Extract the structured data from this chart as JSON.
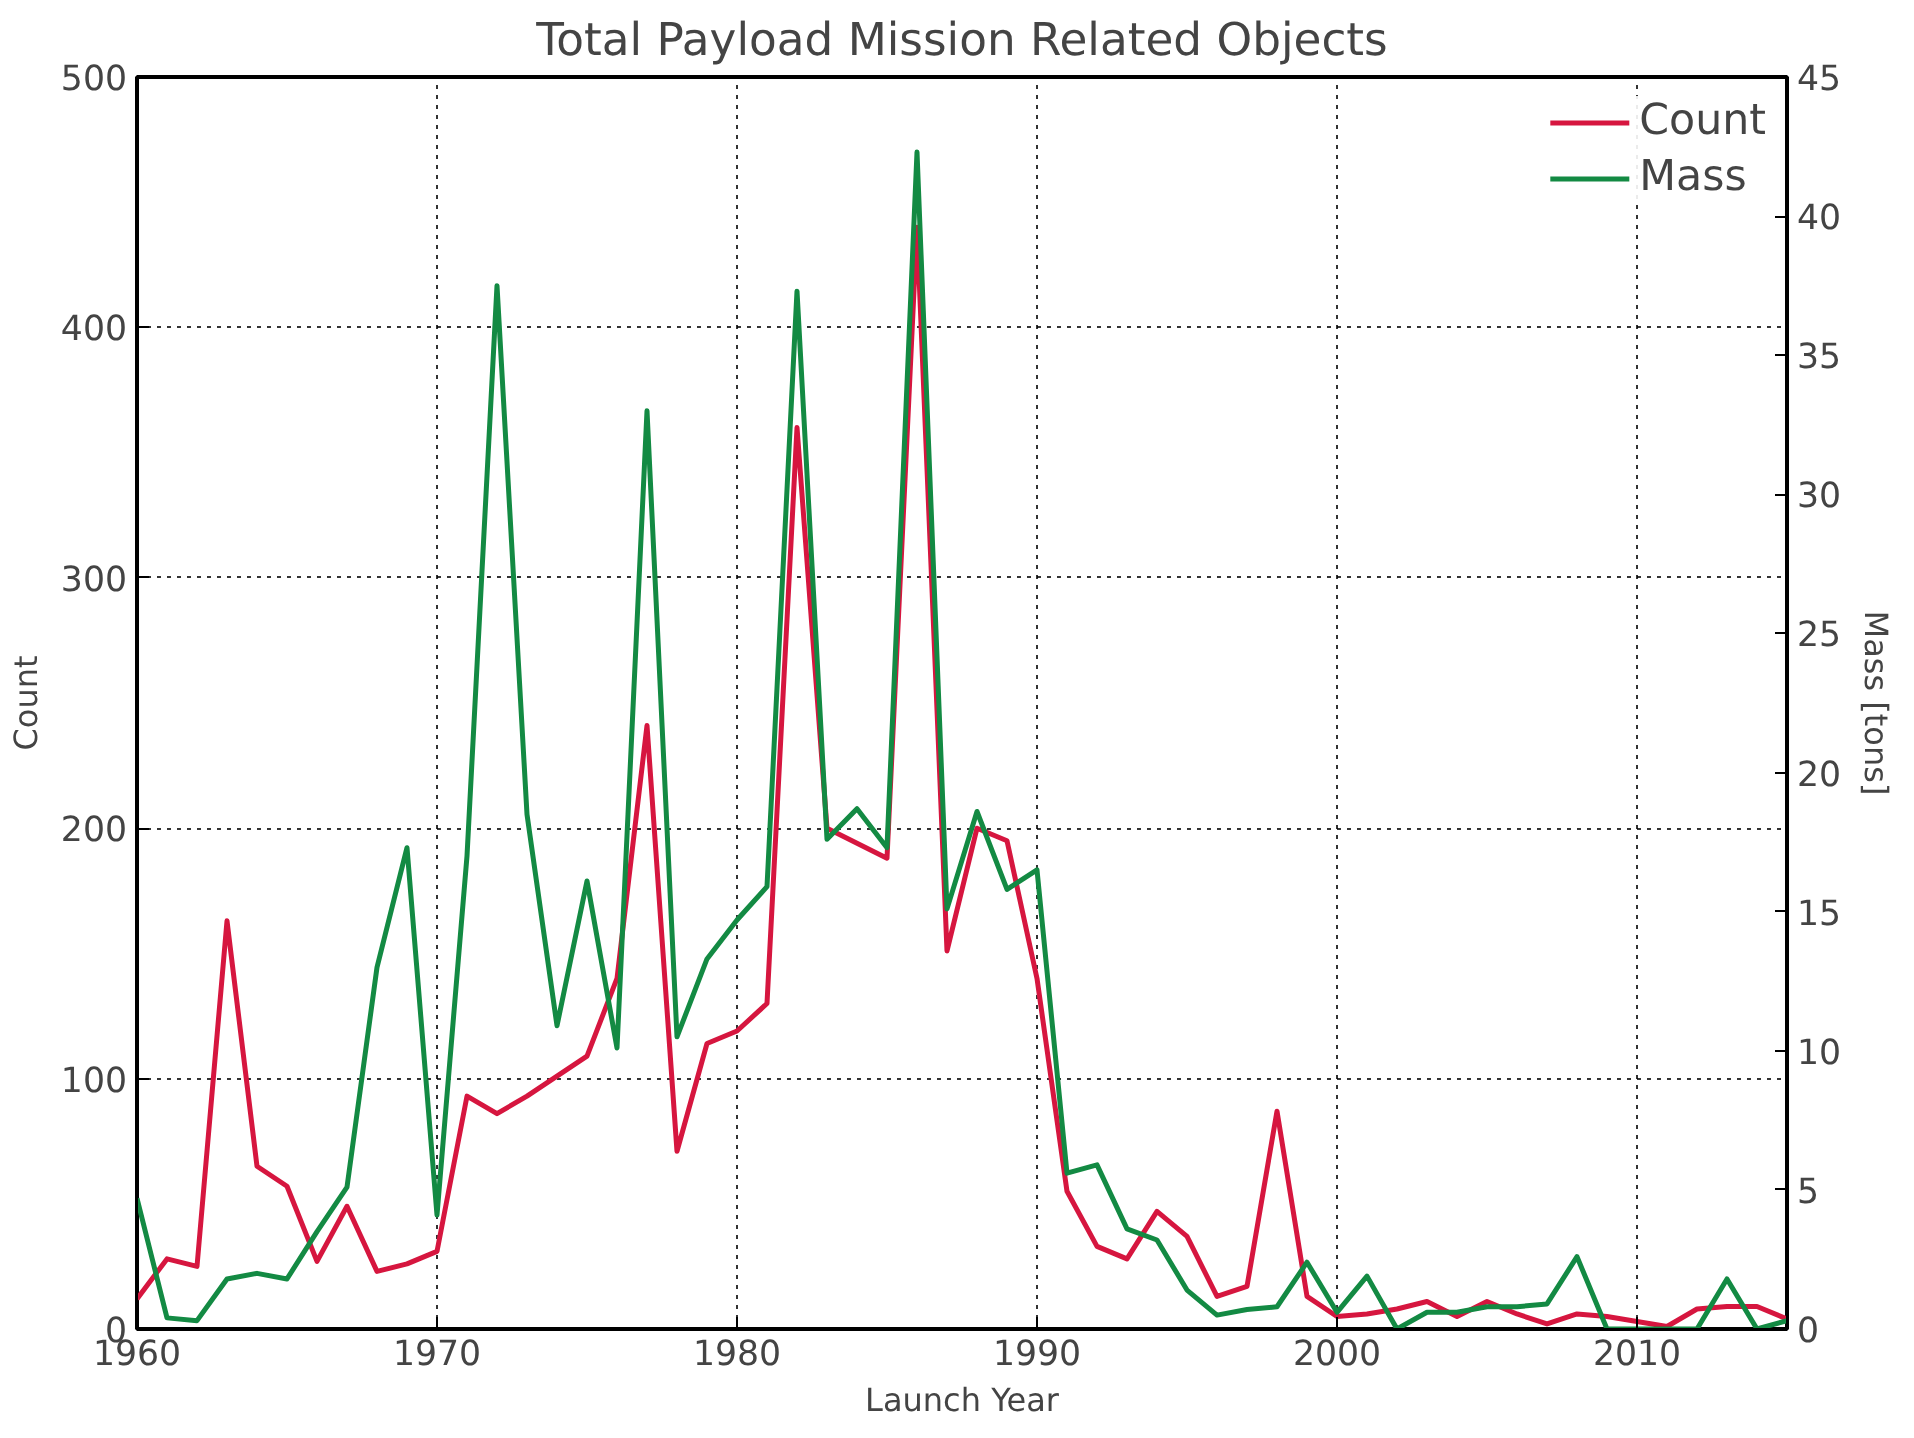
{
  "chart_data": {
    "type": "line",
    "title": "Total Payload Mission Related Objects",
    "xlabel": "Launch Year",
    "ylabel": "Count",
    "y2label": "Mass [tons]",
    "x": [
      1960,
      1961,
      1962,
      1963,
      1964,
      1965,
      1966,
      1967,
      1968,
      1969,
      1970,
      1971,
      1972,
      1973,
      1974,
      1975,
      1976,
      1977,
      1978,
      1979,
      1980,
      1981,
      1982,
      1983,
      1984,
      1985,
      1986,
      1987,
      1988,
      1989,
      1990,
      1991,
      1992,
      1993,
      1994,
      1995,
      1996,
      1997,
      1998,
      1999,
      2000,
      2001,
      2002,
      2003,
      2004,
      2005,
      2006,
      2007,
      2008,
      2009,
      2010,
      2011,
      2012,
      2013,
      2014,
      2015
    ],
    "series": [
      {
        "name": "Count",
        "color": "#d6163f",
        "values": [
          12,
          28,
          25,
          163,
          65,
          57,
          27,
          49,
          23,
          26,
          31,
          93,
          86,
          93,
          101,
          109,
          140,
          241,
          71,
          114,
          119,
          130,
          360,
          200,
          194,
          188,
          440,
          151,
          200,
          195,
          140,
          55,
          33,
          28,
          47,
          37,
          13,
          17,
          87,
          13,
          5,
          6,
          8,
          11,
          5,
          11,
          6,
          2,
          6,
          5,
          3,
          1,
          8,
          9,
          9,
          4
        ]
      },
      {
        "name": "Mass",
        "color": "#138a43",
        "axis": "y2",
        "values": [
          4.7,
          0.4,
          0.3,
          1.8,
          2.0,
          1.8,
          3.5,
          5.1,
          13,
          17.3,
          4.1,
          17.0,
          37.5,
          18.5,
          10.9,
          16.1,
          10.1,
          33.0,
          10.5,
          13.3,
          14.7,
          15.9,
          37.3,
          17.6,
          18.7,
          17.3,
          42.3,
          15.1,
          18.6,
          15.8,
          16.5,
          5.6,
          5.9,
          3.6,
          3.2,
          1.4,
          0.5,
          0.7,
          0.8,
          2.4,
          0.6,
          1.9,
          0,
          0.6,
          0.6,
          0.8,
          0.8,
          0.9,
          2.6,
          0,
          0,
          0,
          0,
          1.8,
          0,
          0.3
        ]
      }
    ],
    "xlim": [
      1960,
      2015
    ],
    "xticks": [
      1960,
      1970,
      1980,
      1990,
      2000,
      2010
    ],
    "ylim": [
      0,
      500
    ],
    "yticks": [
      0,
      100,
      200,
      300,
      400,
      500
    ],
    "y2lim": [
      0,
      45
    ],
    "y2ticks": [
      0,
      5,
      10,
      15,
      20,
      25,
      30,
      35,
      40,
      45
    ],
    "grid": true,
    "legend": "top right",
    "line_style": "solid"
  }
}
